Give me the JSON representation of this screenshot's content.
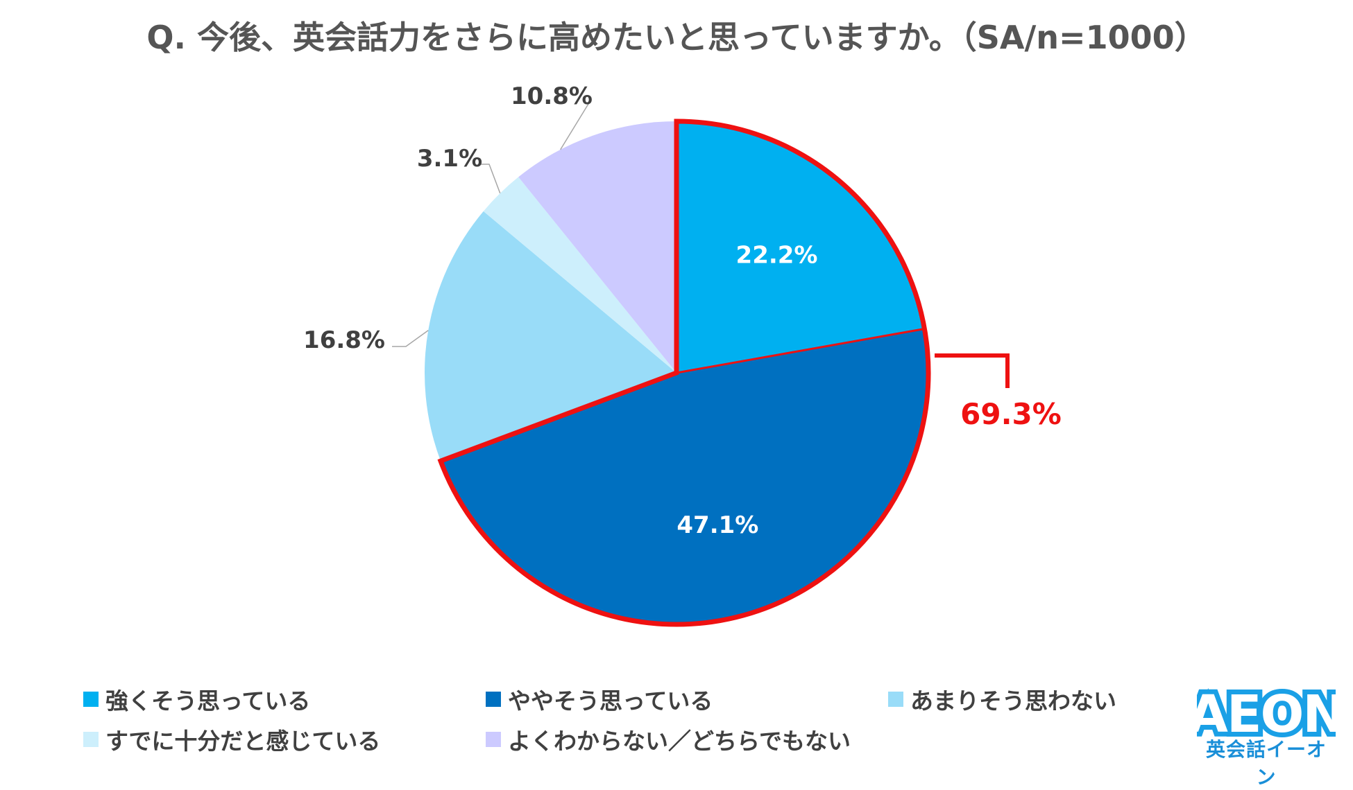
{
  "chart_data": {
    "type": "pie",
    "title": "Q. 今後、英会話力をさらに高めたいと思っていますか。（SA/n=1000）",
    "start_angle_deg": 0,
    "direction": "clockwise",
    "slices": [
      {
        "label": "強くそう思っている",
        "value": 22.2,
        "value_label": "22.2%",
        "color": "#00b0f0",
        "label_color": "#ffffff"
      },
      {
        "label": "ややそう思っている",
        "value": 47.1,
        "value_label": "47.1%",
        "color": "#0070c0",
        "label_color": "#ffffff"
      },
      {
        "label": "あまりそう思わない",
        "value": 16.8,
        "value_label": "16.8%",
        "color": "#99dcf8",
        "label_color": "#404040"
      },
      {
        "label": "すでに十分だと感じている",
        "value": 3.1,
        "value_label": "3.1%",
        "color": "#cdeffc",
        "label_color": "#404040"
      },
      {
        "label": "よくわからない／どちらでもない",
        "value": 10.8,
        "value_label": "10.8%",
        "color": "#cccaff",
        "label_color": "#404040"
      }
    ],
    "highlight": {
      "slices": [
        "強くそう思っている",
        "ややそう思っている"
      ],
      "value_label": "69.3%",
      "color": "#ee1111"
    },
    "legend_position": "bottom"
  },
  "brand": {
    "name": "AEON",
    "subtitle": "英会話イーオン",
    "color": "#1aa0e6"
  }
}
